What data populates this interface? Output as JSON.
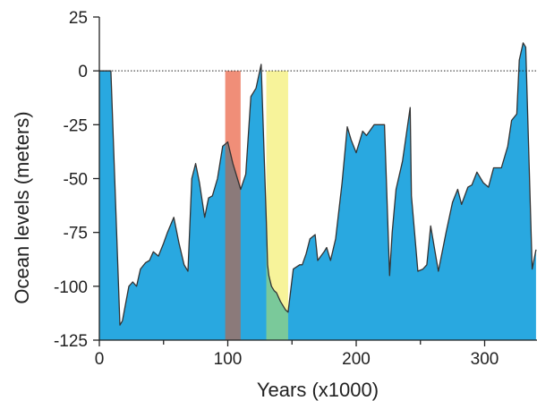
{
  "chart_data": {
    "type": "area",
    "title": "",
    "xlabel": "Years (x1000)",
    "ylabel": "Ocean levels (meters)",
    "xlim": [
      0,
      340
    ],
    "ylim": [
      -125,
      25
    ],
    "x_ticks": [
      0,
      100,
      200,
      300
    ],
    "x_minor_ticks": [
      50,
      150,
      250
    ],
    "y_ticks": [
      25,
      0,
      -25,
      -50,
      -75,
      -100,
      -125
    ],
    "x_tick_labels": [
      "0",
      "100",
      "200",
      "300"
    ],
    "y_tick_labels": [
      "25",
      "0",
      "-25",
      "-50",
      "-75",
      "-100",
      "-125"
    ],
    "reference_line": {
      "y": 0,
      "style": "dotted"
    },
    "highlight_bands": [
      {
        "x_start": 98,
        "x_end": 110,
        "color": "#f08e78"
      },
      {
        "x_start": 130,
        "x_end": 147,
        "color": "#f7f39a"
      }
    ],
    "colors": {
      "area_fill": "#29a8e0",
      "line": "#333333",
      "band_overlap_red": "#8b7a7a",
      "band_overlap_yellow": "#7ac99a",
      "axis": "#222222"
    },
    "series": [
      {
        "x": [
          0,
          9,
          16,
          18,
          23,
          26,
          29,
          32,
          36,
          39,
          42,
          46,
          50,
          53,
          58,
          62,
          66,
          69,
          72,
          75,
          78,
          82,
          85,
          88,
          92,
          96,
          100,
          104,
          110,
          114,
          118,
          122,
          126,
          130,
          131,
          132,
          134,
          136,
          138,
          141,
          145,
          147,
          151,
          156,
          158,
          161,
          164,
          168,
          170,
          175,
          177,
          180,
          184,
          189,
          193,
          196,
          200,
          205,
          208,
          214,
          217,
          222,
          226,
          228,
          231,
          236,
          242,
          243,
          245,
          248,
          252,
          255,
          258,
          264,
          270,
          275,
          279,
          282,
          287,
          290,
          294,
          299,
          303,
          307,
          313,
          318,
          321,
          325,
          327,
          330,
          332,
          337,
          340
        ],
        "y": [
          0,
          0,
          -118,
          -116,
          -100,
          -98,
          -100,
          -92,
          -89,
          -88,
          -84,
          -86,
          -80,
          -75,
          -68,
          -80,
          -90,
          -93,
          -50,
          -43,
          -52,
          -68,
          -59,
          -58,
          -50,
          -35,
          -33,
          -43,
          -55,
          -48,
          -12,
          -8,
          3,
          -70,
          -90,
          -95,
          -100,
          -102,
          -103,
          -107,
          -111,
          -112,
          -92,
          -90,
          -90,
          -85,
          -78,
          -76,
          -88,
          -84,
          -82,
          -88,
          -78,
          -52,
          -26,
          -32,
          -38,
          -28,
          -30,
          -25,
          -25,
          -25,
          -95,
          -75,
          -55,
          -42,
          -17,
          -58,
          -72,
          -93,
          -92,
          -90,
          -72,
          -93,
          -75,
          -61,
          -55,
          -62,
          -54,
          -53,
          -47,
          -52,
          -54,
          -45,
          -45,
          -35,
          -23,
          -20,
          5,
          13,
          11,
          -92,
          -83
        ]
      }
    ]
  }
}
